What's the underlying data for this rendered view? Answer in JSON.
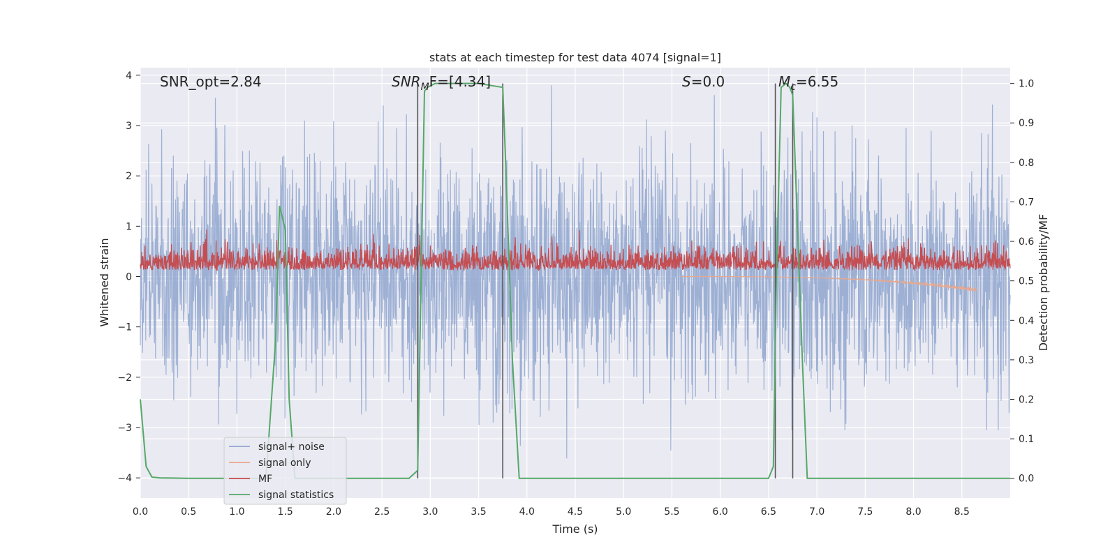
{
  "chart_data": {
    "type": "line",
    "title": "stats at each timestep for test data 4074 [signal=1]",
    "xlabel": "Time (s)",
    "ylabel": "Whitened strain",
    "ylabel_right": "Detection probability/MF",
    "xlim": [
      0.0,
      9.0
    ],
    "ylim": [
      -4.4,
      4.15
    ],
    "ylim_right": [
      -0.05,
      1.04
    ],
    "x_ticks": [
      "0.0",
      "0.5",
      "1.0",
      "1.5",
      "2.0",
      "2.5",
      "3.0",
      "3.5",
      "4.0",
      "4.5",
      "5.0",
      "5.5",
      "6.0",
      "6.5",
      "7.0",
      "7.5",
      "8.0",
      "8.5"
    ],
    "y_ticks": [
      "−4",
      "−3",
      "−2",
      "−1",
      "0",
      "1",
      "2",
      "3",
      "4"
    ],
    "y_ticks_right": [
      "0.0",
      "0.1",
      "0.2",
      "0.3",
      "0.4",
      "0.5",
      "0.6",
      "0.7",
      "0.8",
      "0.9",
      "1.0"
    ],
    "grid": true,
    "annotations": {
      "snr_opt": "SNR_opt=2.84",
      "snr_mf_main": "SNR",
      "snr_mf_sub": "M",
      "snr_mf_rest": "F=[4.34]",
      "s_main": "S",
      "s_rest": "=0.0",
      "mc_main": "M",
      "mc_sub": "c",
      "mc_rest": "=6.55"
    },
    "series": [
      {
        "name": "signal+ noise",
        "color": "#8fa6cf",
        "stats": {
          "band_mean": 0.0,
          "band_std": 1.0,
          "min": -3.9,
          "max": 3.8
        }
      },
      {
        "name": "signal only",
        "color": "#e8a88e",
        "stats": {
          "start": 5.6,
          "end": 8.65,
          "min_value": -0.3
        }
      },
      {
        "name": "MF",
        "color": "#c44e52",
        "stats": {
          "mean": 0.25,
          "std": 0.15
        }
      },
      {
        "name": "signal statistics",
        "color": "#55a868",
        "axis": "right",
        "x": [
          0.0,
          0.06,
          0.12,
          0.2,
          0.5,
          1.0,
          1.3,
          1.4,
          1.44,
          1.5,
          1.54,
          1.6,
          2.0,
          2.6,
          2.78,
          2.87,
          2.94,
          2.97,
          3.05,
          3.5,
          3.75,
          3.78,
          3.85,
          3.92,
          4.0,
          5.0,
          6.0,
          6.5,
          6.55,
          6.58,
          6.63,
          6.68,
          6.72,
          6.75,
          6.85,
          6.9,
          6.95,
          7.5,
          8.5,
          9.0
        ],
        "y": [
          0.2,
          0.03,
          0.003,
          0.001,
          0.0,
          0.0,
          0.0,
          0.35,
          0.69,
          0.63,
          0.2,
          0.0,
          0.0,
          0.0,
          0.0,
          0.02,
          0.98,
          0.99,
          1.0,
          1.0,
          0.99,
          0.8,
          0.3,
          0.0,
          0.0,
          0.0,
          0.0,
          0.0,
          0.03,
          0.5,
          0.99,
          1.0,
          0.99,
          0.97,
          0.3,
          0.0,
          0.0,
          0.0,
          0.0,
          0.0
        ]
      }
    ],
    "vertical_lines": [
      2.87,
      3.75,
      6.57,
      6.75
    ],
    "legend": {
      "placement": "lower-left",
      "entries": [
        "signal+ noise",
        "signal only",
        "MF",
        "signal statistics"
      ]
    }
  }
}
